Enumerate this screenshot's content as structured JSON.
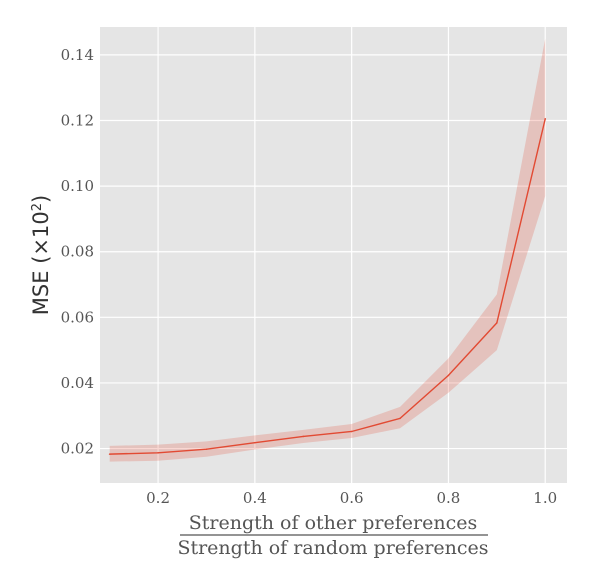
{
  "chart_data": {
    "type": "line",
    "title": "",
    "xlabel": {
      "numerator": "Strength of other preferences",
      "denominator": "Strength of random preferences"
    },
    "ylabel": {
      "prefix": "MSE (×10",
      "exponent": "2",
      "suffix": ")"
    },
    "xlim": [
      0.08,
      1.045
    ],
    "ylim": [
      0.0095,
      0.1485
    ],
    "xticks": [
      0.2,
      0.4,
      0.6,
      0.8,
      1.0
    ],
    "xtick_labels": [
      "0.2",
      "0.4",
      "0.6",
      "0.8",
      "1.0"
    ],
    "yticks": [
      0.02,
      0.04,
      0.06,
      0.08,
      0.1,
      0.12,
      0.14
    ],
    "ytick_labels": [
      "0.02",
      "0.04",
      "0.06",
      "0.08",
      "0.10",
      "0.12",
      "0.14"
    ],
    "grid": true,
    "style": {
      "background": "#e5e5e5",
      "grid_color": "#ffffff",
      "line_color": "#e24a33",
      "band_color": "#e24a33"
    },
    "series": [
      {
        "x": [
          0.1,
          0.2,
          0.3,
          0.4,
          0.5,
          0.6,
          0.7,
          0.8,
          0.9,
          1.0
        ],
        "y": [
          0.0183,
          0.0187,
          0.0198,
          0.0218,
          0.0237,
          0.0252,
          0.0292,
          0.0423,
          0.0583,
          0.1205
        ],
        "lower": [
          0.016,
          0.0163,
          0.0175,
          0.0197,
          0.0217,
          0.0232,
          0.0262,
          0.037,
          0.05,
          0.097
        ],
        "upper": [
          0.0208,
          0.0212,
          0.0222,
          0.024,
          0.0257,
          0.0275,
          0.0327,
          0.0475,
          0.067,
          0.145
        ]
      }
    ]
  }
}
